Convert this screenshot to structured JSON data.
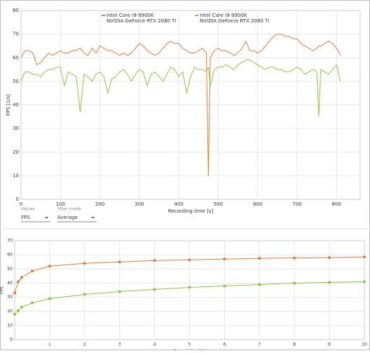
{
  "chart_data": [
    {
      "type": "line",
      "xlabel": "Recording time [s]",
      "ylabel": "FPS [1/s]",
      "xlim": [
        0,
        860
      ],
      "xticks": [
        0,
        100,
        200,
        300,
        400,
        500,
        600,
        700,
        800
      ],
      "ylim": [
        0,
        80
      ],
      "yticks": [
        0,
        10,
        20,
        30,
        40,
        50,
        60,
        70,
        80
      ],
      "grid": true,
      "legend": "top",
      "x": [
        0,
        10,
        20,
        30,
        40,
        50,
        60,
        70,
        80,
        90,
        100,
        110,
        120,
        130,
        140,
        150,
        160,
        170,
        180,
        190,
        200,
        210,
        220,
        230,
        240,
        250,
        260,
        270,
        280,
        290,
        300,
        310,
        320,
        330,
        340,
        350,
        360,
        370,
        380,
        390,
        400,
        410,
        420,
        430,
        440,
        450,
        460,
        470,
        475,
        480,
        490,
        500,
        510,
        520,
        530,
        540,
        550,
        560,
        570,
        580,
        590,
        600,
        610,
        620,
        630,
        640,
        650,
        660,
        670,
        680,
        690,
        700,
        710,
        720,
        730,
        740,
        750,
        755,
        760,
        770,
        780,
        790,
        800,
        810
      ],
      "series": [
        {
          "name": "Intel Core i9-9900K",
          "gpu": "NVIDIA GeForce RTX 2080 Ti",
          "color": "#e07b39",
          "values": [
            60,
            63,
            63,
            62,
            57,
            58,
            60,
            62,
            61,
            62,
            63,
            62,
            62,
            63,
            63,
            64,
            62,
            61,
            64,
            62,
            65,
            64,
            63,
            63,
            62,
            61,
            62,
            61,
            62,
            64,
            66,
            65,
            63,
            62,
            61,
            62,
            64,
            66,
            67,
            66,
            66,
            64,
            63,
            62,
            62,
            63,
            64,
            62,
            10,
            60,
            63,
            64,
            63,
            63,
            62,
            61,
            62,
            64,
            67,
            63,
            63,
            62,
            63,
            65,
            67,
            69,
            70,
            70,
            69,
            69,
            68,
            68,
            66,
            65,
            64,
            63,
            64,
            65,
            65,
            66,
            67,
            66,
            64,
            61
          ]
        },
        {
          "name": "Intel Core i9-9900K",
          "gpu": "NVIDIA GeForce RTX 2080 Ti",
          "color": "#8cc63f",
          "values": [
            50,
            54,
            54,
            53,
            53,
            52,
            54,
            55,
            55,
            56,
            56,
            48,
            54,
            53,
            52,
            37,
            53,
            52,
            50,
            53,
            54,
            52,
            45,
            51,
            52,
            54,
            55,
            53,
            50,
            53,
            55,
            54,
            48,
            53,
            54,
            52,
            50,
            53,
            56,
            55,
            52,
            54,
            45,
            52,
            56,
            55,
            55,
            54,
            56,
            48,
            55,
            56,
            56,
            57,
            56,
            55,
            57,
            58,
            59,
            59,
            58,
            57,
            56,
            55,
            56,
            56,
            55,
            55,
            54,
            54,
            55,
            56,
            55,
            53,
            54,
            55,
            54,
            35,
            55,
            54,
            53,
            55,
            57,
            50
          ]
        }
      ]
    },
    {
      "type": "line",
      "markers": true,
      "xlabel": "Percentiles (%)",
      "ylabel": "FPS",
      "xlim": [
        0,
        10
      ],
      "xticks": [
        1,
        2,
        3,
        4,
        5,
        6,
        7,
        8,
        9,
        10
      ],
      "ylim": [
        0,
        70
      ],
      "yticks": [
        0,
        10,
        20,
        30,
        40,
        50,
        60,
        70
      ],
      "grid": true,
      "x": [
        0,
        0.1,
        0.2,
        0.5,
        1,
        2,
        3,
        4,
        5,
        6,
        7,
        8,
        9,
        10
      ],
      "series": [
        {
          "color": "#e07b39",
          "values": [
            33,
            41,
            44,
            48.5,
            52,
            54,
            55,
            56,
            56.5,
            57,
            57.5,
            57.8,
            58,
            58.5
          ]
        },
        {
          "color": "#8cc63f",
          "values": [
            18,
            20.5,
            23,
            26,
            29,
            32,
            34,
            35.5,
            37,
            38,
            39,
            40,
            40.5,
            41
          ]
        }
      ]
    }
  ],
  "controls": {
    "values_label": "Values",
    "values_selected": "FPS",
    "filter_label": "Filter mode",
    "filter_selected": "Average"
  }
}
